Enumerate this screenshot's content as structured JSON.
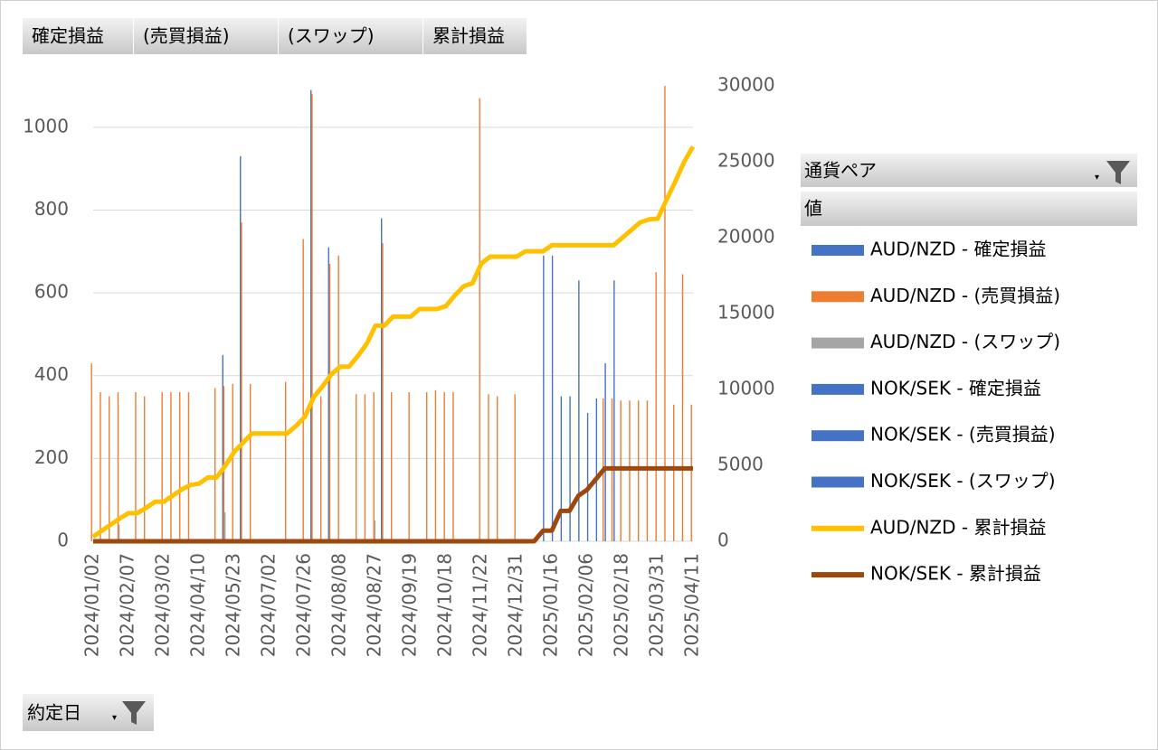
{
  "chart_data": {
    "type": "bar",
    "value_fields": [
      "確定損益",
      "(売買損益)",
      "(スワップ)",
      "累計損益"
    ],
    "axis_field": "約定日",
    "legend_title": "通貨ペア",
    "legend_subtitle": "値",
    "categories": [
      "2024/01/02",
      null,
      null,
      null,
      "2024/02/07",
      null,
      null,
      null,
      "2024/03/02",
      null,
      null,
      null,
      "2024/04/10",
      null,
      null,
      null,
      "2024/05/23",
      null,
      null,
      null,
      "2024/07/02",
      null,
      null,
      null,
      "2024/07/26",
      null,
      null,
      null,
      "2024/08/08",
      null,
      null,
      null,
      "2024/08/27",
      null,
      null,
      null,
      "2024/09/19",
      null,
      null,
      null,
      "2024/10/18",
      null,
      null,
      null,
      "2024/11/22",
      null,
      null,
      null,
      "2024/12/31",
      null,
      null,
      null,
      "2025/01/16",
      null,
      null,
      null,
      "2025/02/06",
      null,
      null,
      null,
      "2025/02/18",
      null,
      null,
      null,
      "2025/03/31",
      null,
      null,
      null,
      "2025/04/11"
    ],
    "ylim": [
      0,
      1100
    ],
    "yticks": [
      0,
      200,
      400,
      600,
      800,
      1000
    ],
    "y2lim": [
      0,
      30000
    ],
    "y2ticks": [
      0,
      5000,
      10000,
      15000,
      20000,
      25000,
      30000
    ],
    "grid": true,
    "series": [
      {
        "name": "AUD/NZD - 確定損益",
        "color": "#4472c4",
        "values": [
          null,
          null,
          null,
          null,
          null,
          null,
          null,
          null,
          null,
          null,
          null,
          null,
          null,
          null,
          null,
          450,
          null,
          930,
          null,
          null,
          null,
          null,
          null,
          null,
          null,
          1090,
          null,
          710,
          null,
          null,
          null,
          null,
          null,
          780,
          null,
          null,
          null,
          null,
          null,
          null,
          null,
          null,
          null,
          null,
          null,
          null,
          null,
          null,
          null,
          null,
          null,
          null,
          null,
          null,
          null,
          null,
          null,
          null,
          null,
          null,
          null,
          null,
          null,
          null,
          null,
          null,
          null,
          null,
          null
        ]
      },
      {
        "name": "AUD/NZD - (売買損益)",
        "color": "#ed7d31",
        "values": [
          430,
          360,
          350,
          360,
          null,
          360,
          350,
          null,
          360,
          360,
          360,
          360,
          null,
          null,
          370,
          375,
          380,
          770,
          380,
          null,
          null,
          null,
          385,
          null,
          730,
          1080,
          350,
          670,
          690,
          null,
          355,
          355,
          360,
          720,
          360,
          null,
          360,
          null,
          360,
          365,
          360,
          360,
          null,
          null,
          1070,
          355,
          350,
          null,
          355,
          null,
          null,
          null,
          null,
          null,
          null,
          null,
          null,
          null,
          345,
          345,
          340,
          340,
          340,
          340,
          650,
          1100,
          330,
          645,
          330
        ]
      },
      {
        "name": "AUD/NZD - (スワップ)",
        "color": "#a5a5a5",
        "values": [
          null,
          null,
          null,
          40,
          null,
          null,
          null,
          null,
          null,
          null,
          null,
          null,
          null,
          null,
          null,
          70,
          null,
          null,
          null,
          null,
          null,
          null,
          null,
          null,
          null,
          null,
          null,
          null,
          null,
          null,
          null,
          null,
          50,
          null,
          null,
          null,
          null,
          null,
          null,
          null,
          null,
          null,
          null,
          null,
          null,
          null,
          null,
          null,
          null,
          null,
          null,
          null,
          null,
          null,
          null,
          null,
          null,
          null,
          null,
          null,
          null,
          null,
          null,
          null,
          null,
          null,
          null,
          null,
          null
        ]
      },
      {
        "name": "NOK/SEK - 確定損益",
        "color": "#4472c4",
        "values": [
          null,
          null,
          null,
          null,
          null,
          null,
          null,
          null,
          null,
          null,
          null,
          null,
          null,
          null,
          null,
          null,
          null,
          null,
          null,
          null,
          null,
          null,
          null,
          null,
          null,
          null,
          null,
          null,
          null,
          null,
          null,
          null,
          null,
          null,
          null,
          null,
          null,
          null,
          null,
          null,
          null,
          null,
          null,
          null,
          null,
          null,
          null,
          null,
          null,
          null,
          null,
          690,
          690,
          350,
          350,
          630,
          310,
          345,
          430,
          630,
          null,
          null,
          null,
          null,
          null,
          null,
          null,
          null,
          null
        ]
      },
      {
        "name": "NOK/SEK - (売買損益)",
        "color": "#4472c4",
        "values": [
          null,
          null,
          null,
          null,
          null,
          null,
          null,
          null,
          null,
          null,
          null,
          null,
          null,
          null,
          null,
          null,
          null,
          null,
          null,
          null,
          null,
          null,
          null,
          null,
          null,
          null,
          null,
          null,
          null,
          null,
          null,
          null,
          null,
          null,
          null,
          null,
          null,
          null,
          null,
          null,
          null,
          null,
          null,
          null,
          null,
          null,
          null,
          null,
          null,
          null,
          null,
          null,
          null,
          null,
          null,
          null,
          null,
          null,
          null,
          null,
          null,
          null,
          null,
          null,
          null,
          null,
          null,
          null,
          null
        ]
      },
      {
        "name": "NOK/SEK - (スワップ)",
        "color": "#4472c4",
        "values": [
          null,
          null,
          null,
          null,
          null,
          null,
          null,
          null,
          null,
          null,
          null,
          null,
          null,
          null,
          null,
          null,
          null,
          null,
          null,
          null,
          null,
          null,
          null,
          null,
          null,
          null,
          null,
          null,
          null,
          null,
          null,
          null,
          null,
          null,
          null,
          null,
          null,
          null,
          null,
          null,
          null,
          null,
          null,
          null,
          null,
          null,
          null,
          null,
          null,
          null,
          null,
          null,
          null,
          null,
          null,
          null,
          null,
          null,
          null,
          null,
          null,
          null,
          null,
          null,
          null,
          null,
          null,
          null,
          null
        ]
      },
      {
        "name": "AUD/NZD - 累計損益",
        "color": "#ffc000",
        "type": "line",
        "axis": "y2",
        "values": [
          300,
          700,
          1100,
          1500,
          1850,
          1850,
          2200,
          2600,
          2600,
          3000,
          3400,
          3700,
          3800,
          4200,
          4200,
          5000,
          5900,
          6500,
          7100,
          7100,
          7100,
          7100,
          7100,
          7600,
          8200,
          9500,
          10200,
          11000,
          11500,
          11500,
          12200,
          13000,
          14200,
          14200,
          14800,
          14800,
          14800,
          15300,
          15300,
          15300,
          15500,
          16200,
          16800,
          17000,
          18300,
          18750,
          18750,
          18750,
          18750,
          19100,
          19100,
          19100,
          19500,
          19500,
          19500,
          19500,
          19500,
          19500,
          19500,
          19500,
          20000,
          20500,
          21000,
          21200,
          21250,
          22500,
          23700,
          25000,
          26000
        ]
      },
      {
        "name": "NOK/SEK - 累計損益",
        "color": "#9e480e",
        "type": "line",
        "axis": "y2",
        "values": [
          0,
          0,
          0,
          0,
          0,
          0,
          0,
          0,
          0,
          0,
          0,
          0,
          0,
          0,
          0,
          0,
          0,
          0,
          0,
          0,
          0,
          0,
          0,
          0,
          0,
          0,
          0,
          0,
          0,
          0,
          0,
          0,
          0,
          0,
          0,
          0,
          0,
          0,
          0,
          0,
          0,
          0,
          0,
          0,
          0,
          0,
          0,
          0,
          0,
          0,
          0,
          700,
          700,
          2000,
          2000,
          3000,
          3400,
          4100,
          4800,
          4800,
          4800,
          4800,
          4800,
          4800,
          4800,
          4800,
          4800,
          4800,
          4800
        ]
      }
    ]
  }
}
